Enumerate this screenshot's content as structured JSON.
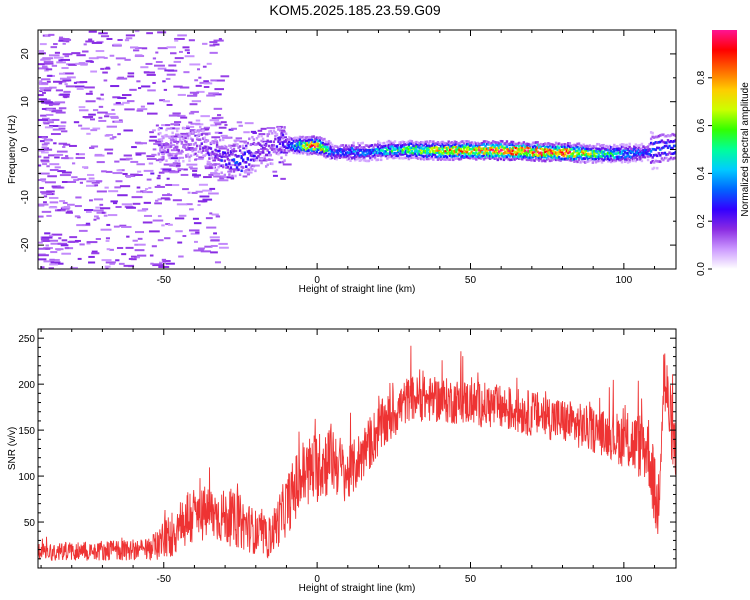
{
  "title": "KOM5.2025.185.23.59.G09",
  "chart_data": [
    {
      "type": "heatmap",
      "xlabel": "Height of straight line (km)",
      "ylabel": "Frequency (Hz)",
      "xlim": [
        -91,
        117
      ],
      "ylim": [
        -25,
        25
      ],
      "x_ticks": [
        -50,
        0,
        50,
        100
      ],
      "y_ticks": [
        -20,
        -10,
        0,
        10,
        20
      ],
      "colorbar": {
        "label": "Normalized spectral amplitude",
        "range": [
          0,
          1
        ],
        "ticks": [
          "0.0",
          "0.2",
          "0.4",
          "0.6",
          "0.8"
        ],
        "colors": [
          "#ffffff",
          "#cc99ff",
          "#8a2be2",
          "#3300ff",
          "#0066ff",
          "#00ccff",
          "#00ff99",
          "#33ff00",
          "#ccff00",
          "#ffcc00",
          "#ff6600",
          "#ff0000",
          "#ff1493"
        ]
      },
      "ridge": [
        {
          "x": -45,
          "f": 0.8,
          "amp": 0.15
        },
        {
          "x": -38,
          "f": 1.0,
          "amp": 0.18
        },
        {
          "x": -32,
          "f": -1.5,
          "amp": 0.25
        },
        {
          "x": -25,
          "f": -2.0,
          "amp": 0.3
        },
        {
          "x": -20,
          "f": -0.8,
          "amp": 0.2
        },
        {
          "x": -14,
          "f": 1.0,
          "amp": 0.2
        },
        {
          "x": -10,
          "f": 1.0,
          "amp": 0.3
        },
        {
          "x": 0,
          "f": 0.8,
          "amp": 0.95
        },
        {
          "x": 5,
          "f": -0.5,
          "amp": 0.3
        },
        {
          "x": 15,
          "f": -0.5,
          "amp": 0.4
        },
        {
          "x": 25,
          "f": 0.0,
          "amp": 0.5
        },
        {
          "x": 40,
          "f": -0.2,
          "amp": 0.8
        },
        {
          "x": 60,
          "f": -0.2,
          "amp": 0.95
        },
        {
          "x": 80,
          "f": -0.6,
          "amp": 0.9
        },
        {
          "x": 95,
          "f": -0.9,
          "amp": 0.5
        },
        {
          "x": 105,
          "f": -0.7,
          "amp": 0.35
        },
        {
          "x": 113,
          "f": 0.5,
          "amp": 0.3
        }
      ]
    },
    {
      "type": "line",
      "xlabel": "Height of straight line (km)",
      "ylabel": "SNR (v/v)",
      "xlim": [
        -91,
        117
      ],
      "ylim": [
        0,
        260
      ],
      "x_ticks": [
        -50,
        0,
        50,
        100
      ],
      "y_ticks": [
        50,
        100,
        150,
        200,
        250
      ],
      "color": "#ee3333",
      "envelope": [
        {
          "x": -91,
          "mean": 18,
          "amp": 10
        },
        {
          "x": -55,
          "mean": 20,
          "amp": 12
        },
        {
          "x": -48,
          "mean": 35,
          "amp": 25
        },
        {
          "x": -42,
          "mean": 55,
          "amp": 35
        },
        {
          "x": -35,
          "mean": 60,
          "amp": 30
        },
        {
          "x": -25,
          "mean": 50,
          "amp": 30
        },
        {
          "x": -16,
          "mean": 30,
          "amp": 20
        },
        {
          "x": -12,
          "mean": 55,
          "amp": 30
        },
        {
          "x": -5,
          "mean": 100,
          "amp": 40
        },
        {
          "x": 5,
          "mean": 120,
          "amp": 40
        },
        {
          "x": 10,
          "mean": 100,
          "amp": 30
        },
        {
          "x": 20,
          "mean": 150,
          "amp": 30
        },
        {
          "x": 30,
          "mean": 185,
          "amp": 25
        },
        {
          "x": 50,
          "mean": 180,
          "amp": 25
        },
        {
          "x": 75,
          "mean": 165,
          "amp": 25
        },
        {
          "x": 95,
          "mean": 145,
          "amp": 25
        },
        {
          "x": 108,
          "mean": 130,
          "amp": 40
        },
        {
          "x": 111,
          "mean": 60,
          "amp": 40
        },
        {
          "x": 113,
          "mean": 210,
          "amp": 50
        },
        {
          "x": 117,
          "mean": 120,
          "amp": 30
        }
      ]
    }
  ]
}
